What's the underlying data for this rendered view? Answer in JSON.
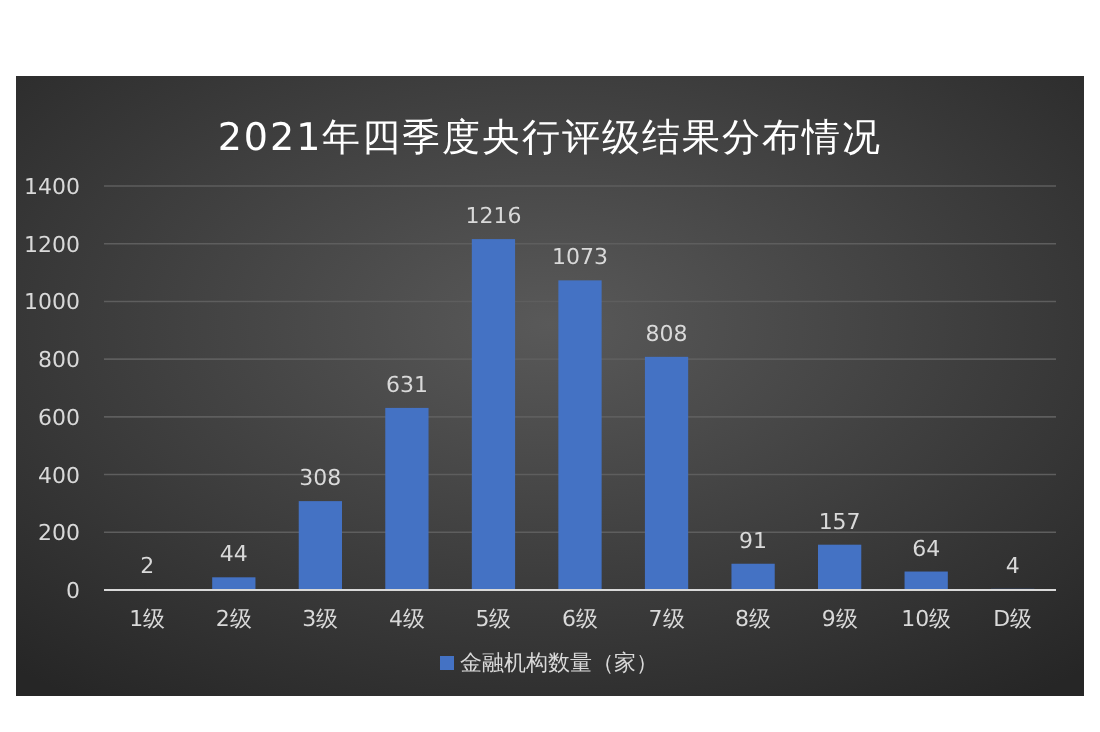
{
  "chart_data": {
    "type": "bar",
    "title": "2021年四季度央行评级结果分布情况",
    "categories": [
      "1级",
      "2级",
      "3级",
      "4级",
      "5级",
      "6级",
      "7级",
      "8级",
      "9级",
      "10级",
      "D级"
    ],
    "series": [
      {
        "name": "金融机构数量（家）",
        "color": "#4472c4",
        "values": [
          2,
          44,
          308,
          631,
          1216,
          1073,
          808,
          91,
          157,
          64,
          4
        ]
      }
    ],
    "ylim": [
      0,
      1400
    ],
    "yticks": [
      0,
      200,
      400,
      600,
      800,
      1000,
      1200,
      1400
    ],
    "grid": "y",
    "legend": "bottom",
    "data_labels": true
  }
}
